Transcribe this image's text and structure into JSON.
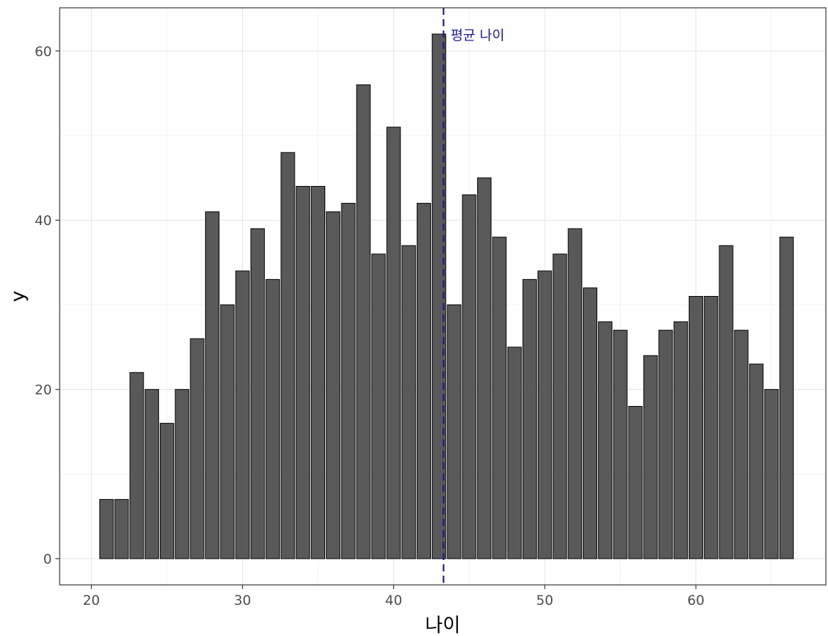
{
  "chart_data": {
    "type": "bar",
    "title": "",
    "xlabel": "나이",
    "ylabel": "y",
    "xlim": [
      17.9,
      68.6
    ],
    "ylim": [
      -3.1,
      65.1
    ],
    "x_ticks": [
      20,
      30,
      40,
      50,
      60
    ],
    "y_ticks": [
      0,
      20,
      40,
      60
    ],
    "x_minor_ticks": [
      25,
      35,
      45,
      55,
      65
    ],
    "y_minor_ticks": [
      10,
      30,
      50
    ],
    "grid": true,
    "legend": "none",
    "bar_color": "#595959",
    "bar_edge_color": "#000000",
    "x": [
      21,
      22,
      23,
      24,
      25,
      26,
      27,
      28,
      29,
      30,
      31,
      32,
      33,
      34,
      35,
      36,
      37,
      38,
      39,
      40,
      41,
      42,
      43,
      44,
      45,
      46,
      47,
      48,
      49,
      50,
      51,
      52,
      53,
      54,
      55,
      56,
      57,
      58,
      59,
      60,
      61,
      62,
      63,
      64,
      65,
      66
    ],
    "values": [
      7,
      7,
      22,
      20,
      16,
      20,
      26,
      41,
      30,
      34,
      39,
      33,
      48,
      44,
      44,
      41,
      42,
      56,
      36,
      51,
      37,
      42,
      62,
      30,
      43,
      45,
      38,
      25,
      33,
      34,
      36,
      39,
      32,
      28,
      27,
      18,
      24,
      27,
      28,
      31,
      31,
      37,
      27,
      23,
      20,
      38
    ],
    "mean_line": {
      "x": 43.3,
      "label": "평균 나이",
      "color": "#1a1a8c",
      "style": "dashed"
    }
  }
}
